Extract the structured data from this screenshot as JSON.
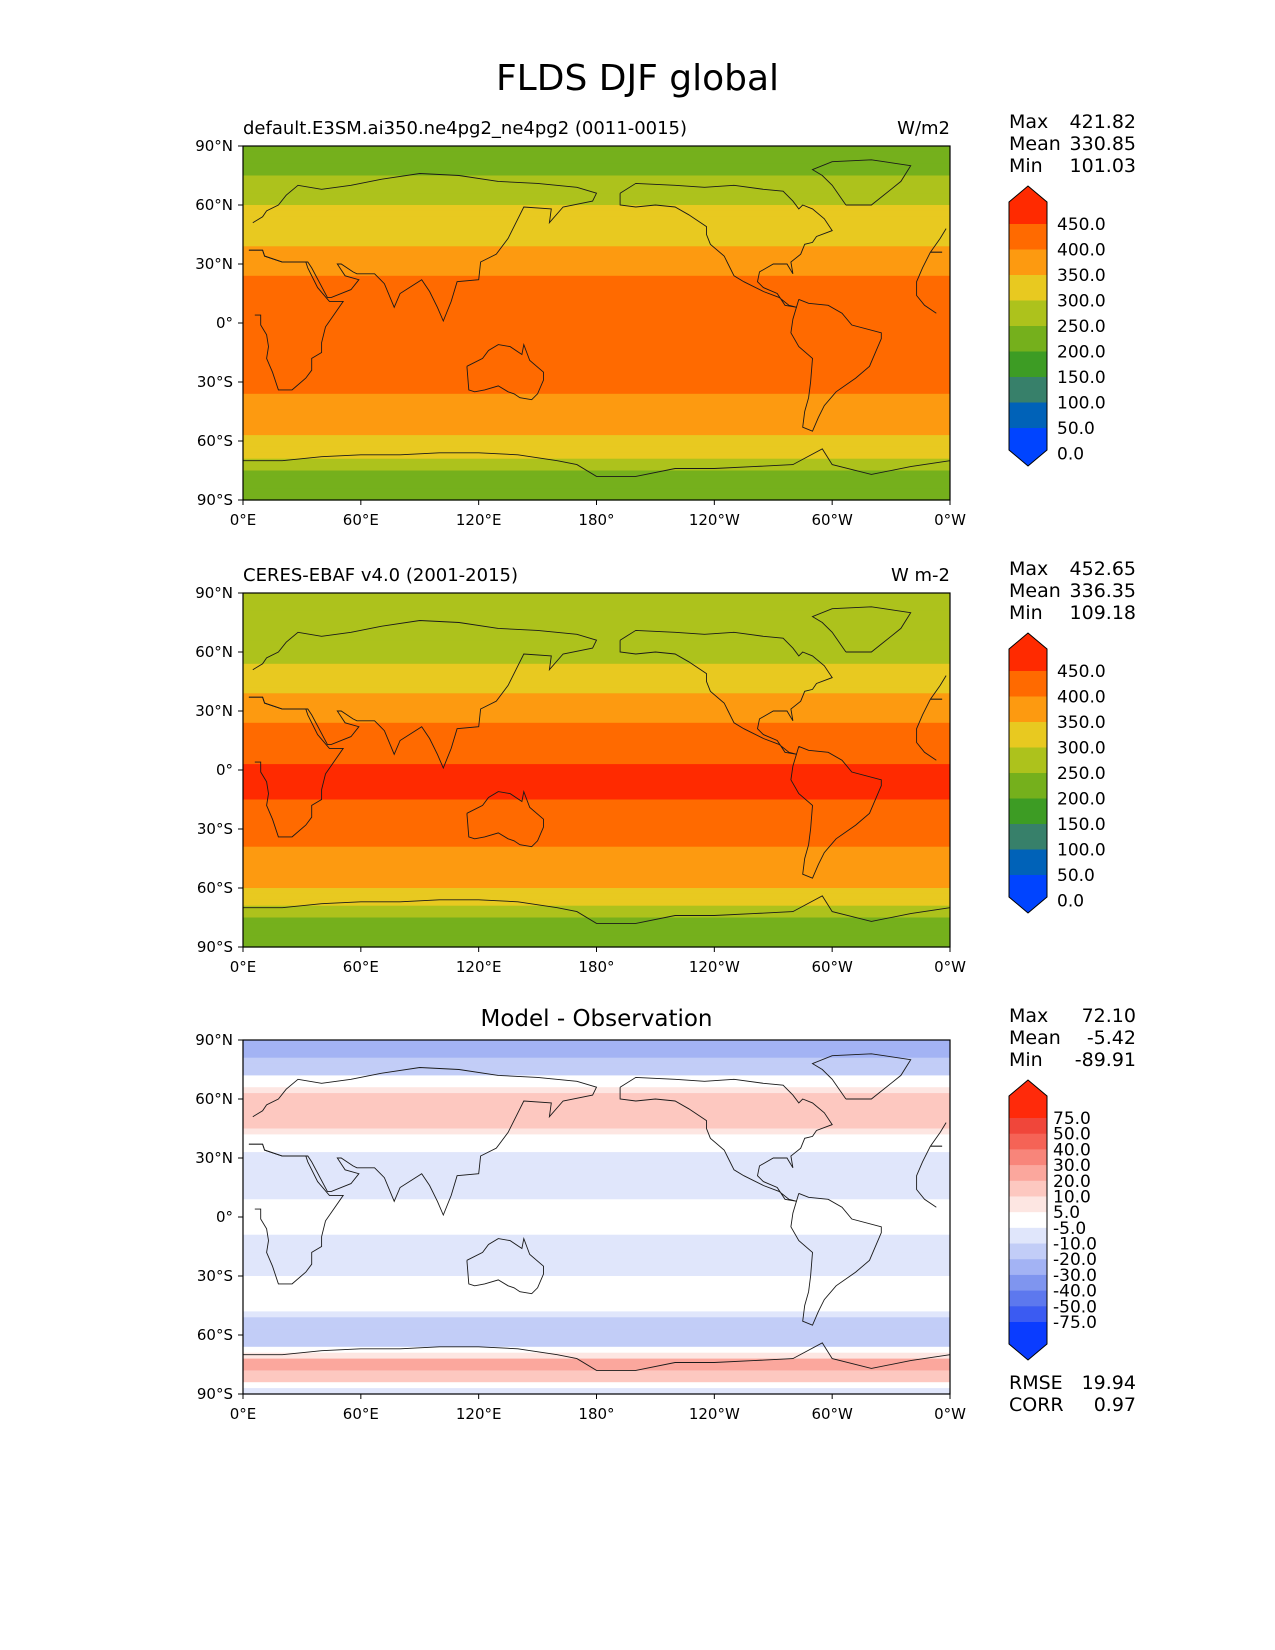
{
  "title": "FLDS DJF global",
  "panels": [
    {
      "left_title": "default.E3SM.ai350.ne4pg2_ne4pg2 (0011-0015)",
      "center_title": "",
      "units": "W/m2",
      "stats": [
        [
          "Max",
          "421.82"
        ],
        [
          "Mean",
          "330.85"
        ],
        [
          "Min",
          "101.03"
        ]
      ],
      "colorbar_ticks": [
        "450.0",
        "400.0",
        "350.0",
        "300.0",
        "250.0",
        "200.0",
        "150.0",
        "100.0",
        "50.0",
        "0.0"
      ],
      "colorbar_colors": [
        "#ff2a00",
        "#ff6a00",
        "#fd9a10",
        "#e8c920",
        "#adc21c",
        "#75b01c",
        "#3d9c24",
        "#37806a",
        "#0062b8",
        "#0044ff"
      ],
      "extra_stats": []
    },
    {
      "left_title": "CERES-EBAF v4.0 (2001-2015)",
      "center_title": "",
      "units": "W m-2",
      "stats": [
        [
          "Max",
          "452.65"
        ],
        [
          "Mean",
          "336.35"
        ],
        [
          "Min",
          "109.18"
        ]
      ],
      "colorbar_ticks": [
        "450.0",
        "400.0",
        "350.0",
        "300.0",
        "250.0",
        "200.0",
        "150.0",
        "100.0",
        "50.0",
        "0.0"
      ],
      "colorbar_colors": [
        "#ff2a00",
        "#ff6a00",
        "#fd9a10",
        "#e8c920",
        "#adc21c",
        "#75b01c",
        "#3d9c24",
        "#37806a",
        "#0062b8",
        "#0044ff"
      ],
      "extra_stats": []
    },
    {
      "left_title": "",
      "center_title": "Model - Observation",
      "units": "",
      "stats": [
        [
          "Max",
          "72.10"
        ],
        [
          "Mean",
          "-5.42"
        ],
        [
          "Min",
          "-89.91"
        ]
      ],
      "colorbar_ticks": [
        "75.0",
        "50.0",
        "40.0",
        "30.0",
        "20.0",
        "10.0",
        "5.0",
        "-5.0",
        "-10.0",
        "-20.0",
        "-30.0",
        "-40.0",
        "-50.0",
        "-75.0"
      ],
      "colorbar_colors": [
        "#ff2a0a",
        "#f0463a",
        "#f56356",
        "#f8857a",
        "#fba79d",
        "#fdc8c0",
        "#fde6e2",
        "#ffffff",
        "#e0e6fb",
        "#c2cdf7",
        "#a3b3f4",
        "#7f95ef",
        "#5d78ee",
        "#3b5bf2",
        "#0a3cff"
      ],
      "extra_stats": [
        [
          "RMSE",
          "19.94"
        ],
        [
          "CORR",
          "0.97"
        ]
      ]
    }
  ],
  "x_ticks": [
    "0°E",
    "60°E",
    "120°E",
    "180°",
    "120°W",
    "60°W",
    "0°W"
  ],
  "y_ticks": [
    "90°N",
    "60°N",
    "30°N",
    "0°",
    "30°S",
    "60°S",
    "90°S"
  ],
  "chart_data": [
    {
      "type": "heatmap",
      "projection": "PlateCarree",
      "left_title": "default.E3SM.ai350.ne4pg2_ne4pg2 (0011-0015)",
      "units": "W/m2",
      "x_range": [
        0,
        360
      ],
      "y_range": [
        -90,
        90
      ],
      "levels": [
        0,
        50,
        100,
        150,
        200,
        250,
        300,
        350,
        400,
        450
      ],
      "zonal_profile": {
        "lat": [
          -90,
          -75,
          -65,
          -55,
          -45,
          -30,
          -15,
          0,
          15,
          30,
          45,
          60,
          75,
          90
        ],
        "value": [
          170,
          190,
          270,
          310,
          330,
          360,
          390,
          400,
          370,
          330,
          280,
          250,
          200,
          180
        ]
      },
      "stats": {
        "Max": 421.82,
        "Mean": 330.85,
        "Min": 101.03
      }
    },
    {
      "type": "heatmap",
      "projection": "PlateCarree",
      "left_title": "CERES-EBAF v4.0 (2001-2015)",
      "units": "W m-2",
      "x_range": [
        0,
        360
      ],
      "y_range": [
        -90,
        90
      ],
      "levels": [
        0,
        50,
        100,
        150,
        200,
        250,
        300,
        350,
        400,
        450
      ],
      "zonal_profile": {
        "lat": [
          -90,
          -75,
          -65,
          -55,
          -45,
          -30,
          -15,
          0,
          15,
          30,
          45,
          60,
          75,
          90
        ],
        "value": [
          175,
          195,
          280,
          320,
          340,
          370,
          400,
          405,
          375,
          335,
          280,
          230,
          210,
          200
        ]
      },
      "stats": {
        "Max": 452.65,
        "Mean": 336.35,
        "Min": 109.18
      }
    },
    {
      "type": "heatmap",
      "projection": "PlateCarree",
      "title": "Model - Observation",
      "x_range": [
        0,
        360
      ],
      "y_range": [
        -90,
        90
      ],
      "levels": [
        -75,
        -50,
        -40,
        -30,
        -20,
        -10,
        -5,
        5,
        10,
        20,
        30,
        40,
        50,
        75
      ],
      "zonal_profile": {
        "lat": [
          -90,
          -75,
          -65,
          -55,
          -45,
          -30,
          -15,
          0,
          15,
          30,
          45,
          60,
          75,
          90
        ],
        "value": [
          -10,
          30,
          -15,
          -20,
          0,
          -5,
          -10,
          0,
          -10,
          -10,
          10,
          20,
          -15,
          -30
        ]
      },
      "stats": {
        "Max": 72.1,
        "Mean": -5.42,
        "Min": -89.91,
        "RMSE": 19.94,
        "CORR": 0.97
      }
    }
  ]
}
